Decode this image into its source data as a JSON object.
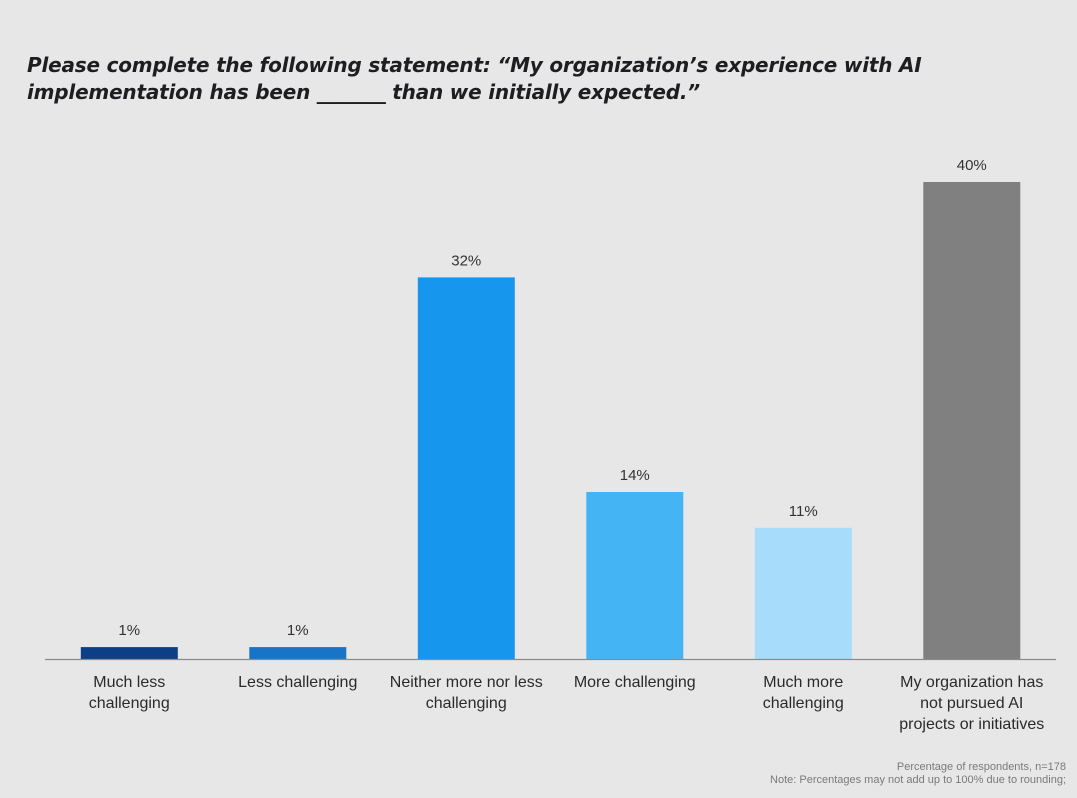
{
  "chart_data": {
    "type": "bar",
    "title": "Please complete the following statement: “My organization’s experience with AI implementation has been _______  than we initially expected.”",
    "categories": [
      [
        "Much less",
        "challenging"
      ],
      [
        "Less challenging"
      ],
      [
        "Neither more nor less",
        "challenging"
      ],
      [
        "More challenging"
      ],
      [
        "Much more",
        "challenging"
      ],
      [
        "My organization has",
        "not pursued AI",
        "projects or initiatives"
      ]
    ],
    "values": [
      1,
      1,
      32,
      14,
      11,
      40
    ],
    "value_labels": [
      "1%",
      "1%",
      "32%",
      "14%",
      "11%",
      "40%"
    ],
    "colors": [
      "#0d3f86",
      "#1874c8",
      "#1796ee",
      "#45b4f4",
      "#a7dcfa",
      "#808080"
    ],
    "unit": "%",
    "xlabel": "",
    "ylabel": "",
    "ylim": [
      0,
      40
    ],
    "grid": false,
    "legend": "none"
  },
  "footnotes": [
    "Percentage of respondents, n=178",
    "Note: Percentages may not add up to 100% due to rounding;"
  ]
}
